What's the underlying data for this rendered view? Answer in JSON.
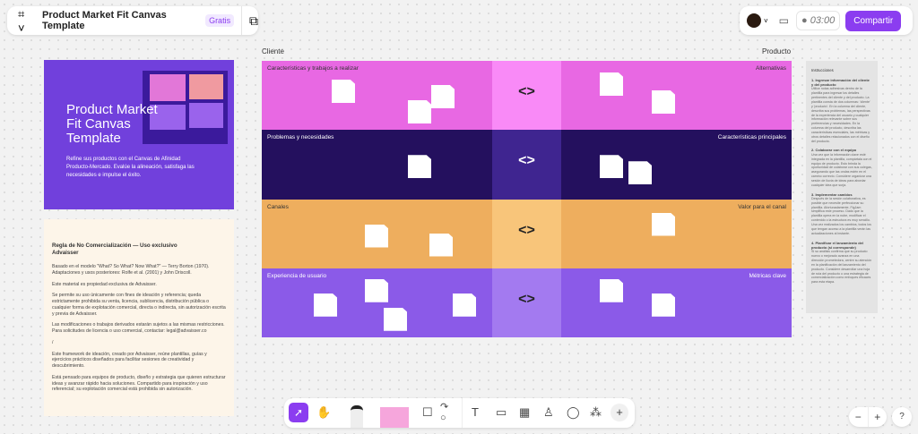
{
  "header": {
    "title": "Product Market Fit Canvas Template",
    "badge": "Gratis",
    "timer": "03:00",
    "share": "Compartir"
  },
  "board": {
    "left_label": "Cliente",
    "right_label": "Producto",
    "rows": [
      {
        "left": "Características y trabajos a realizar",
        "right": "Alternativas",
        "c1": "#e868e3",
        "c2": "#f98af7",
        "text": "#333",
        "arrow": "<>"
      },
      {
        "left": "Problemas y necesidades",
        "right": "Características principales",
        "c1": "#24105e",
        "c2": "#3f2590",
        "text": "#fff",
        "arrow": "<>"
      },
      {
        "left": "Canales",
        "right": "Valor para el canal",
        "c1": "#eeae5e",
        "c2": "#f8c57a",
        "text": "#333",
        "arrow": "<>"
      },
      {
        "left": "Experiencia de usuario",
        "right": "Métricas clave",
        "c1": "#8b5ae8",
        "c2": "#a37af0",
        "text": "#fff",
        "arrow": "<>"
      }
    ]
  },
  "cover": {
    "title": "Product Market Fit Canvas Template",
    "subtitle": "Refine sus productos con el Canvas de Afinidad Producto-Mercado. Evalúe la alineación, satisfaga las necesidades e impulse el éxito."
  },
  "license": {
    "title": "Regla de No Comercialización — Uso exclusivo Advaisser",
    "paragraphs": [
      "Basado en el modelo \"What? So What? Now What?\" — Terry Borton (1970). Adaptaciones y usos posteriores: Rolfe et al. (2001) y John Driscoll.",
      "Este material es propiedad exclusiva de Advaisser.",
      "Se permite su uso únicamente con fines de ideación y referencia; queda estrictamente prohibida su venta, licencia, sublicencia, distribución pública o cualquier forma de explotación comercial, directa o indirecta, sin autorización escrita y previa de Advaisser.",
      "Las modificaciones o trabajos derivados estarán sujetos a las mismas restricciones. Para solicitudes de licencia o uso comercial, contactar: legal@advaisser.co",
      "/",
      "Este framework de ideación, creado por Advaisser, reúne plantillas, guías y ejercicios prácticos diseñados para facilitar sesiones de creatividad y descubrimiento.",
      "Está pensado para equipos de producto, diseño y estrategia que quieren estructurar ideas y avanzar rápido hacia soluciones. Compartido para inspiración y uso referencial; su explotación comercial está prohibida sin autorización."
    ]
  },
  "instructions": {
    "title": "Instrucciones",
    "steps": [
      {
        "h": "1. Ingresar información del cliente y del producto",
        "p": "Utilice notas adhesivas dentro de la plantilla para ingresar los detalles pertinentes del cliente y del producto. La plantilla consta de dos columnas: 'cliente' y 'producto'. En la columna del cliente, describa sus problemas, las perspectivas de la experiencia del usuario y cualquier información relevante sobre sus preferencias y necesidades. En la columna del producto, describa las características esenciales, las métricas y otros detalles relacionados con el diseño del producto."
      },
      {
        "h": "2. Colaborar con el equipo",
        "p": "Una vez que la información clave esté integrada en la plantilla, compártala con el equipo de producto. Esto brinda la oportunidad de colaborar con sus colegas, asegurando que las ondas estén en el camino correcto. Considere organizar una sesión de lluvia de ideas para abordar cualquier idea que surja."
      },
      {
        "h": "3. Implementar cambios",
        "p": "Después de la sesión colaborativa, es posible que necesite perfeccionar su plantilla. Afortunadamente, FigJam simplifica este proceso. Dado que la plantilla opera en la nube, modificar el contenido o la estructura es muy sencillo. Una vez realizados los cambios, todos los que tengan acceso a la plantilla verán las actualizaciones al instante."
      },
      {
        "h": "4. Planificar el lanzamiento del producto (si corresponde)",
        "p": "Si su análisis confirma que su producto nuevo o mejorado avanza en una dirección prometedora, centre su atención en la planificación del lanzamiento del producto. Considere desarrollar una hoja de ruta del producto o una estrategia de comercialización como enfoques eficaces para esta etapa."
      }
    ]
  },
  "tools": [
    "select",
    "hand",
    "pen",
    "sticky-note",
    "shape",
    "connector",
    "text",
    "section",
    "table",
    "stamp",
    "comment",
    "widgets",
    "more"
  ],
  "zoom_controls": {
    "minus": "−",
    "plus": "+",
    "help": "?"
  }
}
